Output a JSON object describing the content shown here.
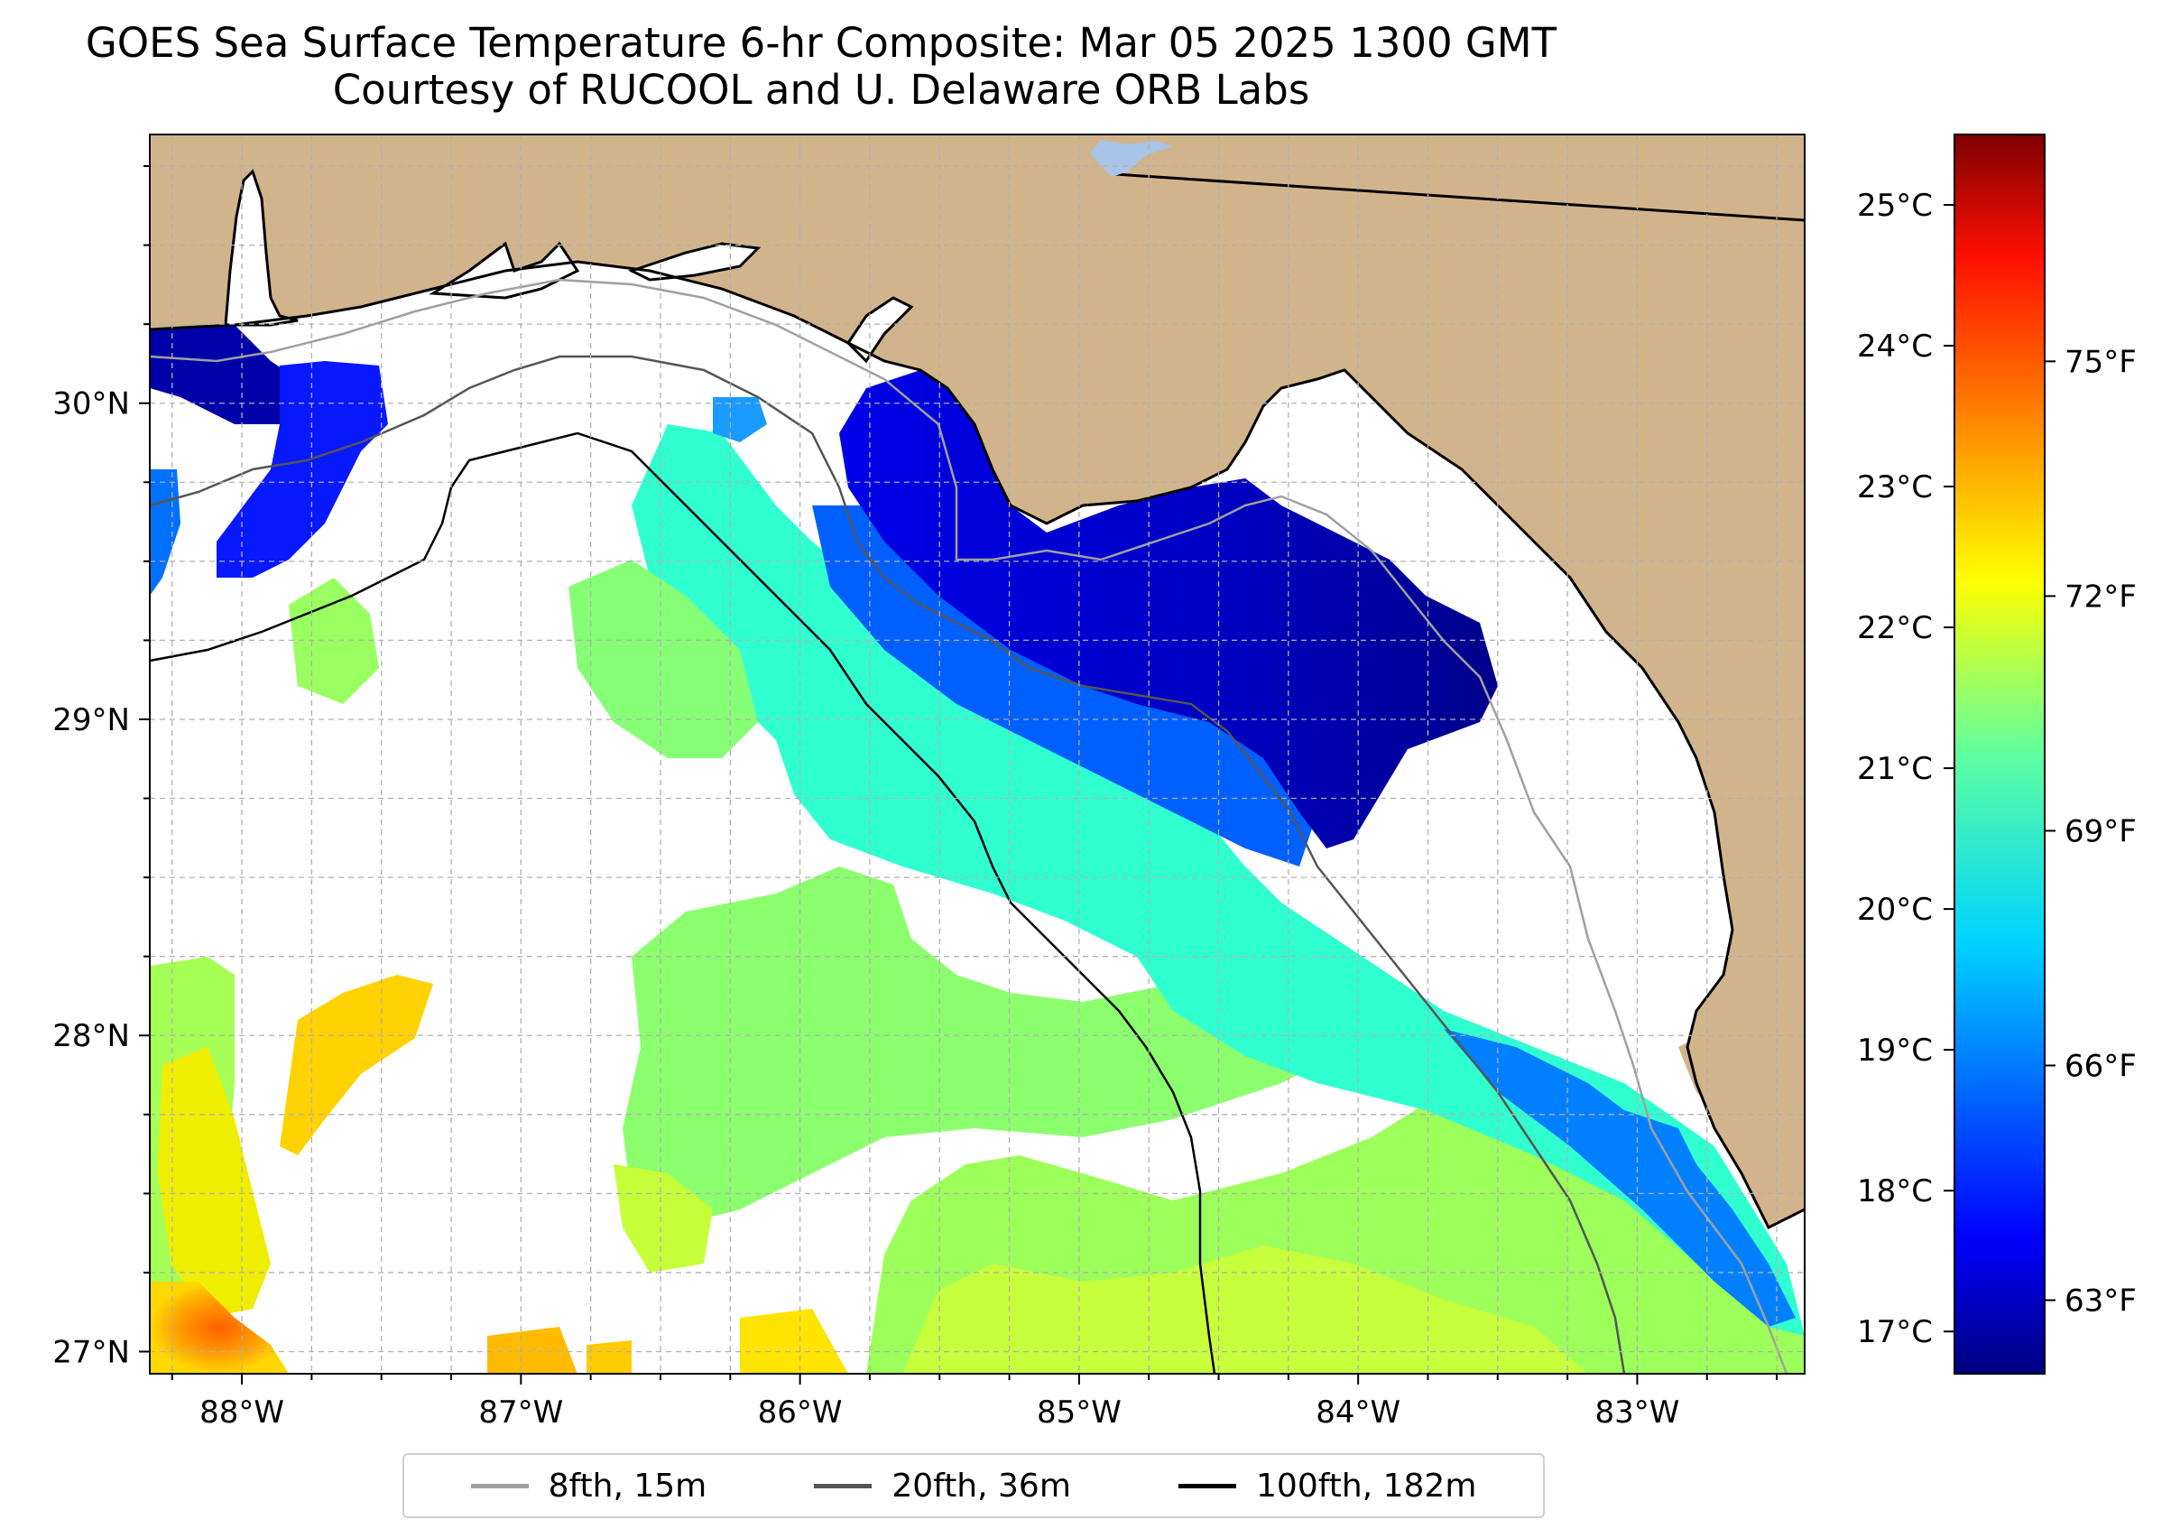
{
  "title": {
    "line1": "GOES Sea Surface Temperature 6-hr Composite: Mar 05 2025 1300 GMT",
    "line2": "Courtesy of RUCOOL and U. Delaware ORB Labs"
  },
  "map": {
    "lon_range": [
      -88.33,
      -82.4
    ],
    "lat_range": [
      26.93,
      30.85
    ],
    "lon_ticks": [
      {
        "value": -88,
        "label": "88°W"
      },
      {
        "value": -87,
        "label": "87°W"
      },
      {
        "value": -86,
        "label": "86°W"
      },
      {
        "value": -85,
        "label": "85°W"
      },
      {
        "value": -84,
        "label": "84°W"
      },
      {
        "value": -83,
        "label": "83°W"
      }
    ],
    "lat_ticks": [
      {
        "value": 27,
        "label": "27°N"
      },
      {
        "value": 28,
        "label": "28°N"
      },
      {
        "value": 29,
        "label": "29°N"
      },
      {
        "value": 30,
        "label": "30°N"
      }
    ],
    "colors": {
      "land": "#d2b48c",
      "coast": "#000000",
      "grid": "#b0b0b0"
    }
  },
  "colorbar": {
    "celsius_ticks": [
      {
        "value": 17,
        "label": "17°C"
      },
      {
        "value": 18,
        "label": "18°C"
      },
      {
        "value": 19,
        "label": "19°C"
      },
      {
        "value": 20,
        "label": "20°C"
      },
      {
        "value": 21,
        "label": "21°C"
      },
      {
        "value": 22,
        "label": "22°C"
      },
      {
        "value": 23,
        "label": "23°C"
      },
      {
        "value": 24,
        "label": "24°C"
      },
      {
        "value": 25,
        "label": "25°C"
      }
    ],
    "fahrenheit_ticks": [
      {
        "value": 63,
        "label": "63°F"
      },
      {
        "value": 66,
        "label": "66°F"
      },
      {
        "value": 69,
        "label": "69°F"
      },
      {
        "value": 72,
        "label": "72°F"
      },
      {
        "value": 75,
        "label": "75°F"
      }
    ],
    "range_c": [
      16.7,
      25.5
    ],
    "colormap": [
      "#00007f",
      "#0000ff",
      "#007fff",
      "#00ffff",
      "#7fff7f",
      "#ffff00",
      "#ff7f00",
      "#ff0000",
      "#7f0000"
    ]
  },
  "legend": {
    "items": [
      {
        "label": "8fth, 15m",
        "color": "#a0a0a0"
      },
      {
        "label": "20fth, 36m",
        "color": "#555555"
      },
      {
        "label": "100fth, 182m",
        "color": "#000000"
      }
    ]
  }
}
